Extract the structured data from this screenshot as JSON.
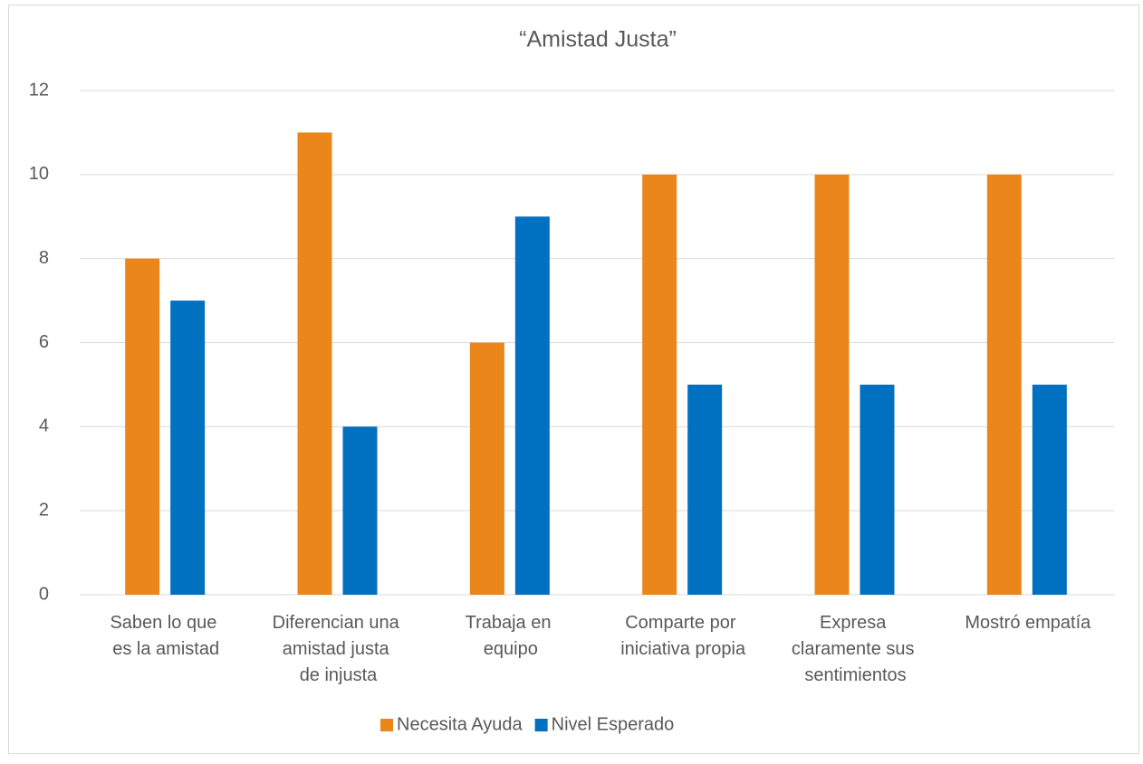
{
  "chart_data": {
    "type": "bar",
    "title": "“Amistad Justa”",
    "categories": [
      "Saben lo que es la amistad",
      "Diferencian una amistad justa de injusta",
      "Trabaja en equipo",
      "Comparte por iniciativa propia",
      "Expresa claramente sus sentimientos",
      "Mostró empatía"
    ],
    "series": [
      {
        "name": "Necesita Ayuda",
        "color": "#EA861A",
        "values": [
          8,
          11,
          6,
          10,
          10,
          10
        ]
      },
      {
        "name": "Nivel Esperado",
        "color": "#0070C0",
        "values": [
          7,
          4,
          9,
          5,
          5,
          5
        ]
      }
    ],
    "ylim": [
      0,
      12
    ],
    "yticks": [
      0,
      2,
      4,
      6,
      8,
      10,
      12
    ],
    "grid": true,
    "legend": "bottom"
  }
}
